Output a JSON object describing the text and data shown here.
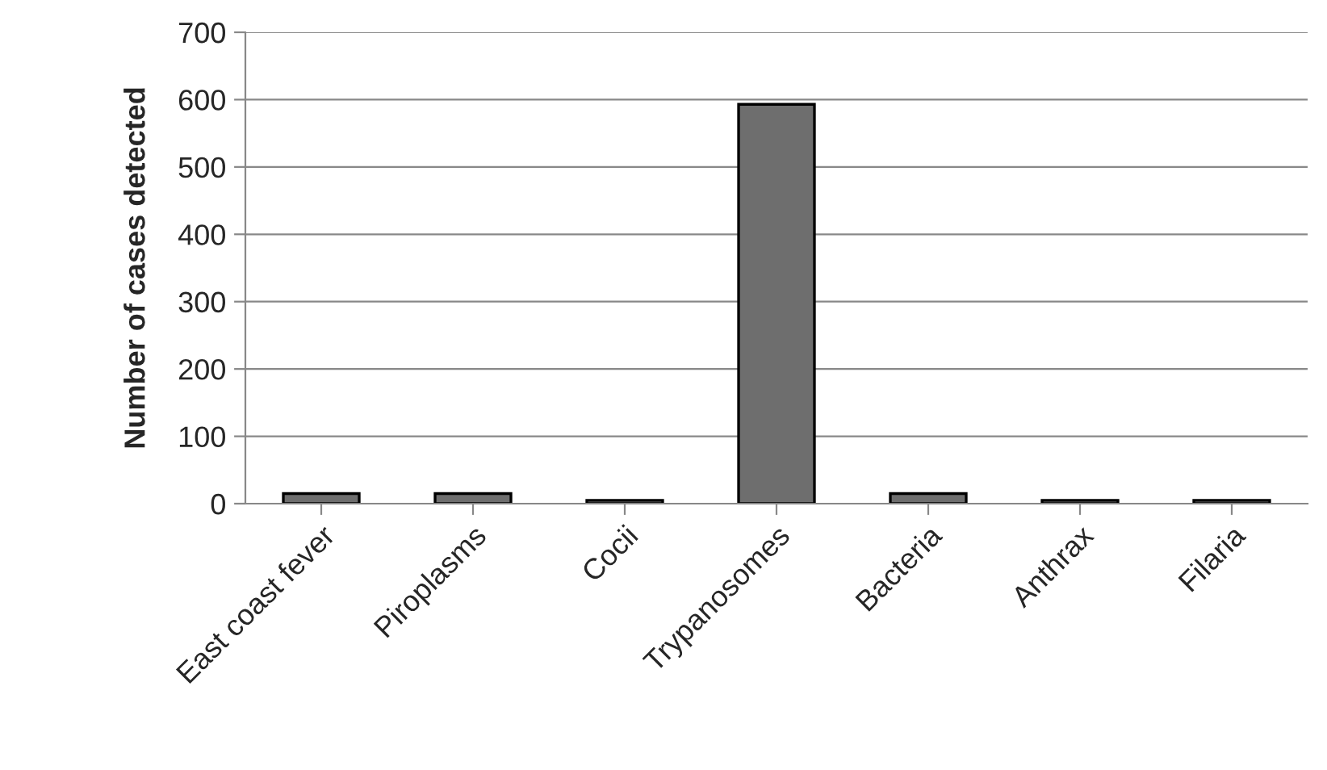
{
  "chart_data": {
    "type": "bar",
    "ylabel": "Number of cases detected",
    "categories": [
      "East coast fever",
      "Piroplasms",
      "Cocii",
      "Trypanosomes",
      "Bacteria",
      "Anthrax",
      "Filaria"
    ],
    "values": [
      15,
      15,
      5,
      593,
      15,
      5,
      5
    ],
    "color": "#6e6e6e",
    "ylim": [
      0,
      700
    ],
    "yticks": [
      0,
      100,
      200,
      300,
      400,
      500,
      600,
      700
    ],
    "grid": "y"
  }
}
